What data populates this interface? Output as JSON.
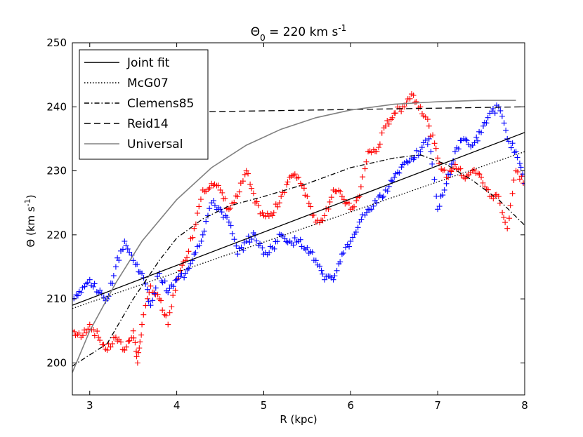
{
  "chart_data": {
    "type": "line",
    "title": "Θ₀ = 220 km s⁻¹",
    "title_base": "Θ",
    "title_sub": "0",
    "title_rest": " = 220 km s",
    "title_sup": "-1",
    "xlabel": "R (kpc)",
    "ylabel_base": "Θ (km s",
    "ylabel_sup": "-1",
    "ylabel_end": ")",
    "xlim": [
      2.8,
      8.0
    ],
    "ylim": [
      195,
      250
    ],
    "xticks": [
      3,
      4,
      5,
      6,
      7,
      8
    ],
    "xtick_labels": [
      "3",
      "4",
      "5",
      "6",
      "7",
      "8"
    ],
    "yticks": [
      200,
      210,
      220,
      230,
      240,
      250
    ],
    "ytick_labels": [
      "200",
      "210",
      "220",
      "230",
      "240",
      "250"
    ],
    "legend_position": "top-left",
    "colors": {
      "red": "#ff0000",
      "blue": "#0000ff",
      "universal": "#808080",
      "black": "#000000"
    },
    "series": [
      {
        "name": "Joint fit",
        "style": "solid",
        "color": "#000000",
        "x": [
          2.8,
          8.0
        ],
        "y": [
          209.0,
          236.0
        ]
      },
      {
        "name": "McG07",
        "style": "dotted",
        "color": "#000000",
        "x": [
          2.8,
          8.0
        ],
        "y": [
          208.5,
          233.0
        ]
      },
      {
        "name": "Clemens85",
        "style": "dashdot",
        "color": "#000000",
        "x": [
          2.8,
          3.2,
          3.5,
          3.8,
          4.0,
          4.3,
          4.6,
          5.0,
          5.5,
          6.0,
          6.5,
          6.8,
          7.1,
          7.4,
          7.7,
          8.0
        ],
        "y": [
          199.5,
          203.0,
          210.0,
          216.0,
          219.5,
          222.5,
          224.5,
          226.0,
          228.0,
          230.5,
          232.0,
          232.5,
          231.0,
          228.5,
          225.5,
          221.5
        ]
      },
      {
        "name": "Reid14",
        "style": "dashed",
        "color": "#000000",
        "x": [
          4.15,
          8.0
        ],
        "y": [
          239.2,
          240.0
        ]
      },
      {
        "name": "Universal",
        "style": "solid",
        "color": "#808080",
        "x": [
          2.8,
          3.0,
          3.3,
          3.6,
          4.0,
          4.4,
          4.8,
          5.2,
          5.6,
          6.0,
          6.5,
          7.0,
          7.5,
          7.9
        ],
        "y": [
          198.5,
          205.0,
          212.5,
          219.0,
          225.5,
          230.5,
          234.0,
          236.5,
          238.3,
          239.5,
          240.4,
          240.8,
          241.0,
          241.0
        ]
      }
    ],
    "scatter_series": [
      {
        "name": "red data",
        "color": "#ff0000",
        "x": [
          2.8,
          2.9,
          3.0,
          3.1,
          3.2,
          3.3,
          3.4,
          3.5,
          3.55,
          3.6,
          3.7,
          3.8,
          3.9,
          4.0,
          4.1,
          4.2,
          4.3,
          4.4,
          4.5,
          4.6,
          4.7,
          4.8,
          4.9,
          5.0,
          5.1,
          5.2,
          5.3,
          5.4,
          5.5,
          5.6,
          5.7,
          5.8,
          5.9,
          6.0,
          6.1,
          6.2,
          6.3,
          6.4,
          6.5,
          6.6,
          6.7,
          6.8,
          6.9,
          7.0,
          7.1,
          7.2,
          7.3,
          7.4,
          7.5,
          7.6,
          7.7,
          7.8,
          7.9,
          8.0
        ],
        "y": [
          205,
          204,
          206,
          204,
          202,
          204,
          202,
          205,
          200,
          206,
          212,
          210,
          206,
          213,
          216,
          221,
          227,
          228,
          227,
          224,
          226,
          230,
          225,
          223,
          223,
          226,
          229,
          229,
          226,
          222,
          223,
          227,
          226,
          224,
          226,
          233,
          233,
          237,
          239,
          240,
          242,
          240,
          237,
          232,
          229,
          231,
          229,
          230,
          229,
          226,
          226,
          221,
          230,
          228
        ]
      },
      {
        "name": "blue data",
        "color": "#0000ff",
        "x": [
          2.8,
          2.9,
          3.0,
          3.1,
          3.2,
          3.3,
          3.4,
          3.5,
          3.6,
          3.7,
          3.8,
          3.9,
          4.0,
          4.1,
          4.2,
          4.3,
          4.4,
          4.5,
          4.6,
          4.7,
          4.8,
          4.9,
          5.0,
          5.1,
          5.2,
          5.3,
          5.4,
          5.5,
          5.6,
          5.7,
          5.8,
          5.9,
          6.0,
          6.1,
          6.2,
          6.3,
          6.4,
          6.5,
          6.6,
          6.7,
          6.8,
          6.9,
          7.0,
          7.1,
          7.2,
          7.3,
          7.4,
          7.5,
          7.6,
          7.7,
          7.8,
          7.9,
          8.0
        ],
        "y": [
          210,
          211,
          213,
          211,
          210,
          215,
          219,
          216,
          214,
          209,
          214,
          211,
          213,
          214,
          217,
          220,
          225,
          224,
          222,
          217,
          219,
          220,
          217,
          218,
          220,
          219,
          219,
          218,
          216,
          213,
          213,
          217,
          219,
          222,
          224,
          225,
          227,
          229,
          231,
          232,
          233,
          235,
          224,
          228,
          233,
          235,
          234,
          236,
          239,
          240,
          235,
          233,
          228
        ]
      }
    ]
  }
}
